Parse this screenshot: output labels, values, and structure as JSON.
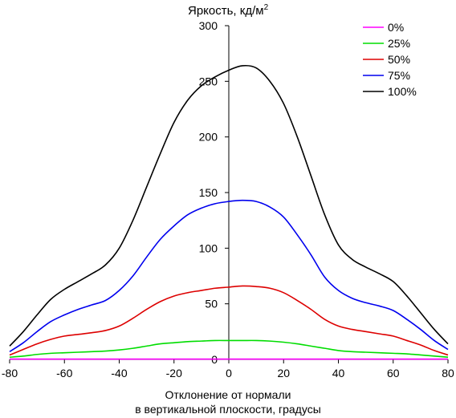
{
  "chart_data": {
    "type": "line",
    "title": "Яркость, кд/м",
    "title_sup": "2",
    "xlabel_line1": "Отклонение от нормали",
    "xlabel_line2": "в вертикальной плоскости, градусы",
    "ylabel": "",
    "xlim": [
      -80,
      80
    ],
    "ylim": [
      0,
      300
    ],
    "xticks": [
      -80,
      -60,
      -40,
      -20,
      0,
      20,
      40,
      60,
      80
    ],
    "yticks": [
      0,
      50,
      100,
      150,
      200,
      250,
      300
    ],
    "grid": false,
    "legend": "top-right",
    "x": [
      -80,
      -75,
      -70,
      -65,
      -60,
      -55,
      -50,
      -45,
      -40,
      -35,
      -30,
      -25,
      -20,
      -15,
      -10,
      -5,
      0,
      5,
      10,
      15,
      20,
      25,
      30,
      35,
      40,
      45,
      50,
      55,
      60,
      65,
      70,
      75,
      80
    ],
    "series": [
      {
        "name": "0%",
        "color": "#ff00ff",
        "values": [
          0.3,
          0.3,
          0.3,
          0.3,
          0.3,
          0.3,
          0.3,
          0.3,
          0.3,
          0.3,
          0.3,
          0.3,
          0.3,
          0.3,
          0.3,
          0.3,
          0.3,
          0.3,
          0.3,
          0.3,
          0.3,
          0.3,
          0.3,
          0.3,
          0.3,
          0.3,
          0.3,
          0.3,
          0.3,
          0.3,
          0.3,
          0.3,
          0.3
        ]
      },
      {
        "name": "25%",
        "color": "#00dd00",
        "values": [
          2,
          3,
          4.5,
          5.5,
          6,
          6.5,
          7,
          7.5,
          8.5,
          10,
          12,
          14,
          15,
          16,
          16.5,
          17,
          17,
          17,
          17,
          16.5,
          15.5,
          14,
          12,
          10,
          8,
          7,
          6.5,
          6,
          5.5,
          5,
          4,
          3,
          2
        ]
      },
      {
        "name": "50%",
        "color": "#dd0000",
        "values": [
          4,
          9,
          14,
          18,
          21,
          22.5,
          24,
          26,
          30,
          37,
          45,
          52,
          57,
          60,
          62,
          64,
          65,
          66,
          65.5,
          64,
          60,
          53,
          45,
          36,
          30,
          27,
          25,
          23,
          21,
          17,
          13,
          8,
          4
        ]
      },
      {
        "name": "75%",
        "color": "#0000ee",
        "values": [
          7,
          15,
          25,
          34,
          40,
          45,
          49,
          53,
          62,
          75,
          92,
          108,
          120,
          130,
          136,
          140,
          142,
          143,
          142,
          137,
          128,
          112,
          94,
          74,
          62,
          55,
          51,
          48,
          44,
          36,
          27,
          17,
          9
        ]
      },
      {
        "name": "100%",
        "color": "#000000",
        "values": [
          12,
          25,
          40,
          54,
          63,
          70,
          77,
          85,
          100,
          125,
          155,
          185,
          213,
          233,
          246,
          254,
          260,
          264,
          262,
          250,
          230,
          200,
          165,
          130,
          103,
          90,
          83,
          77,
          70,
          57,
          42,
          27,
          14
        ]
      }
    ]
  }
}
